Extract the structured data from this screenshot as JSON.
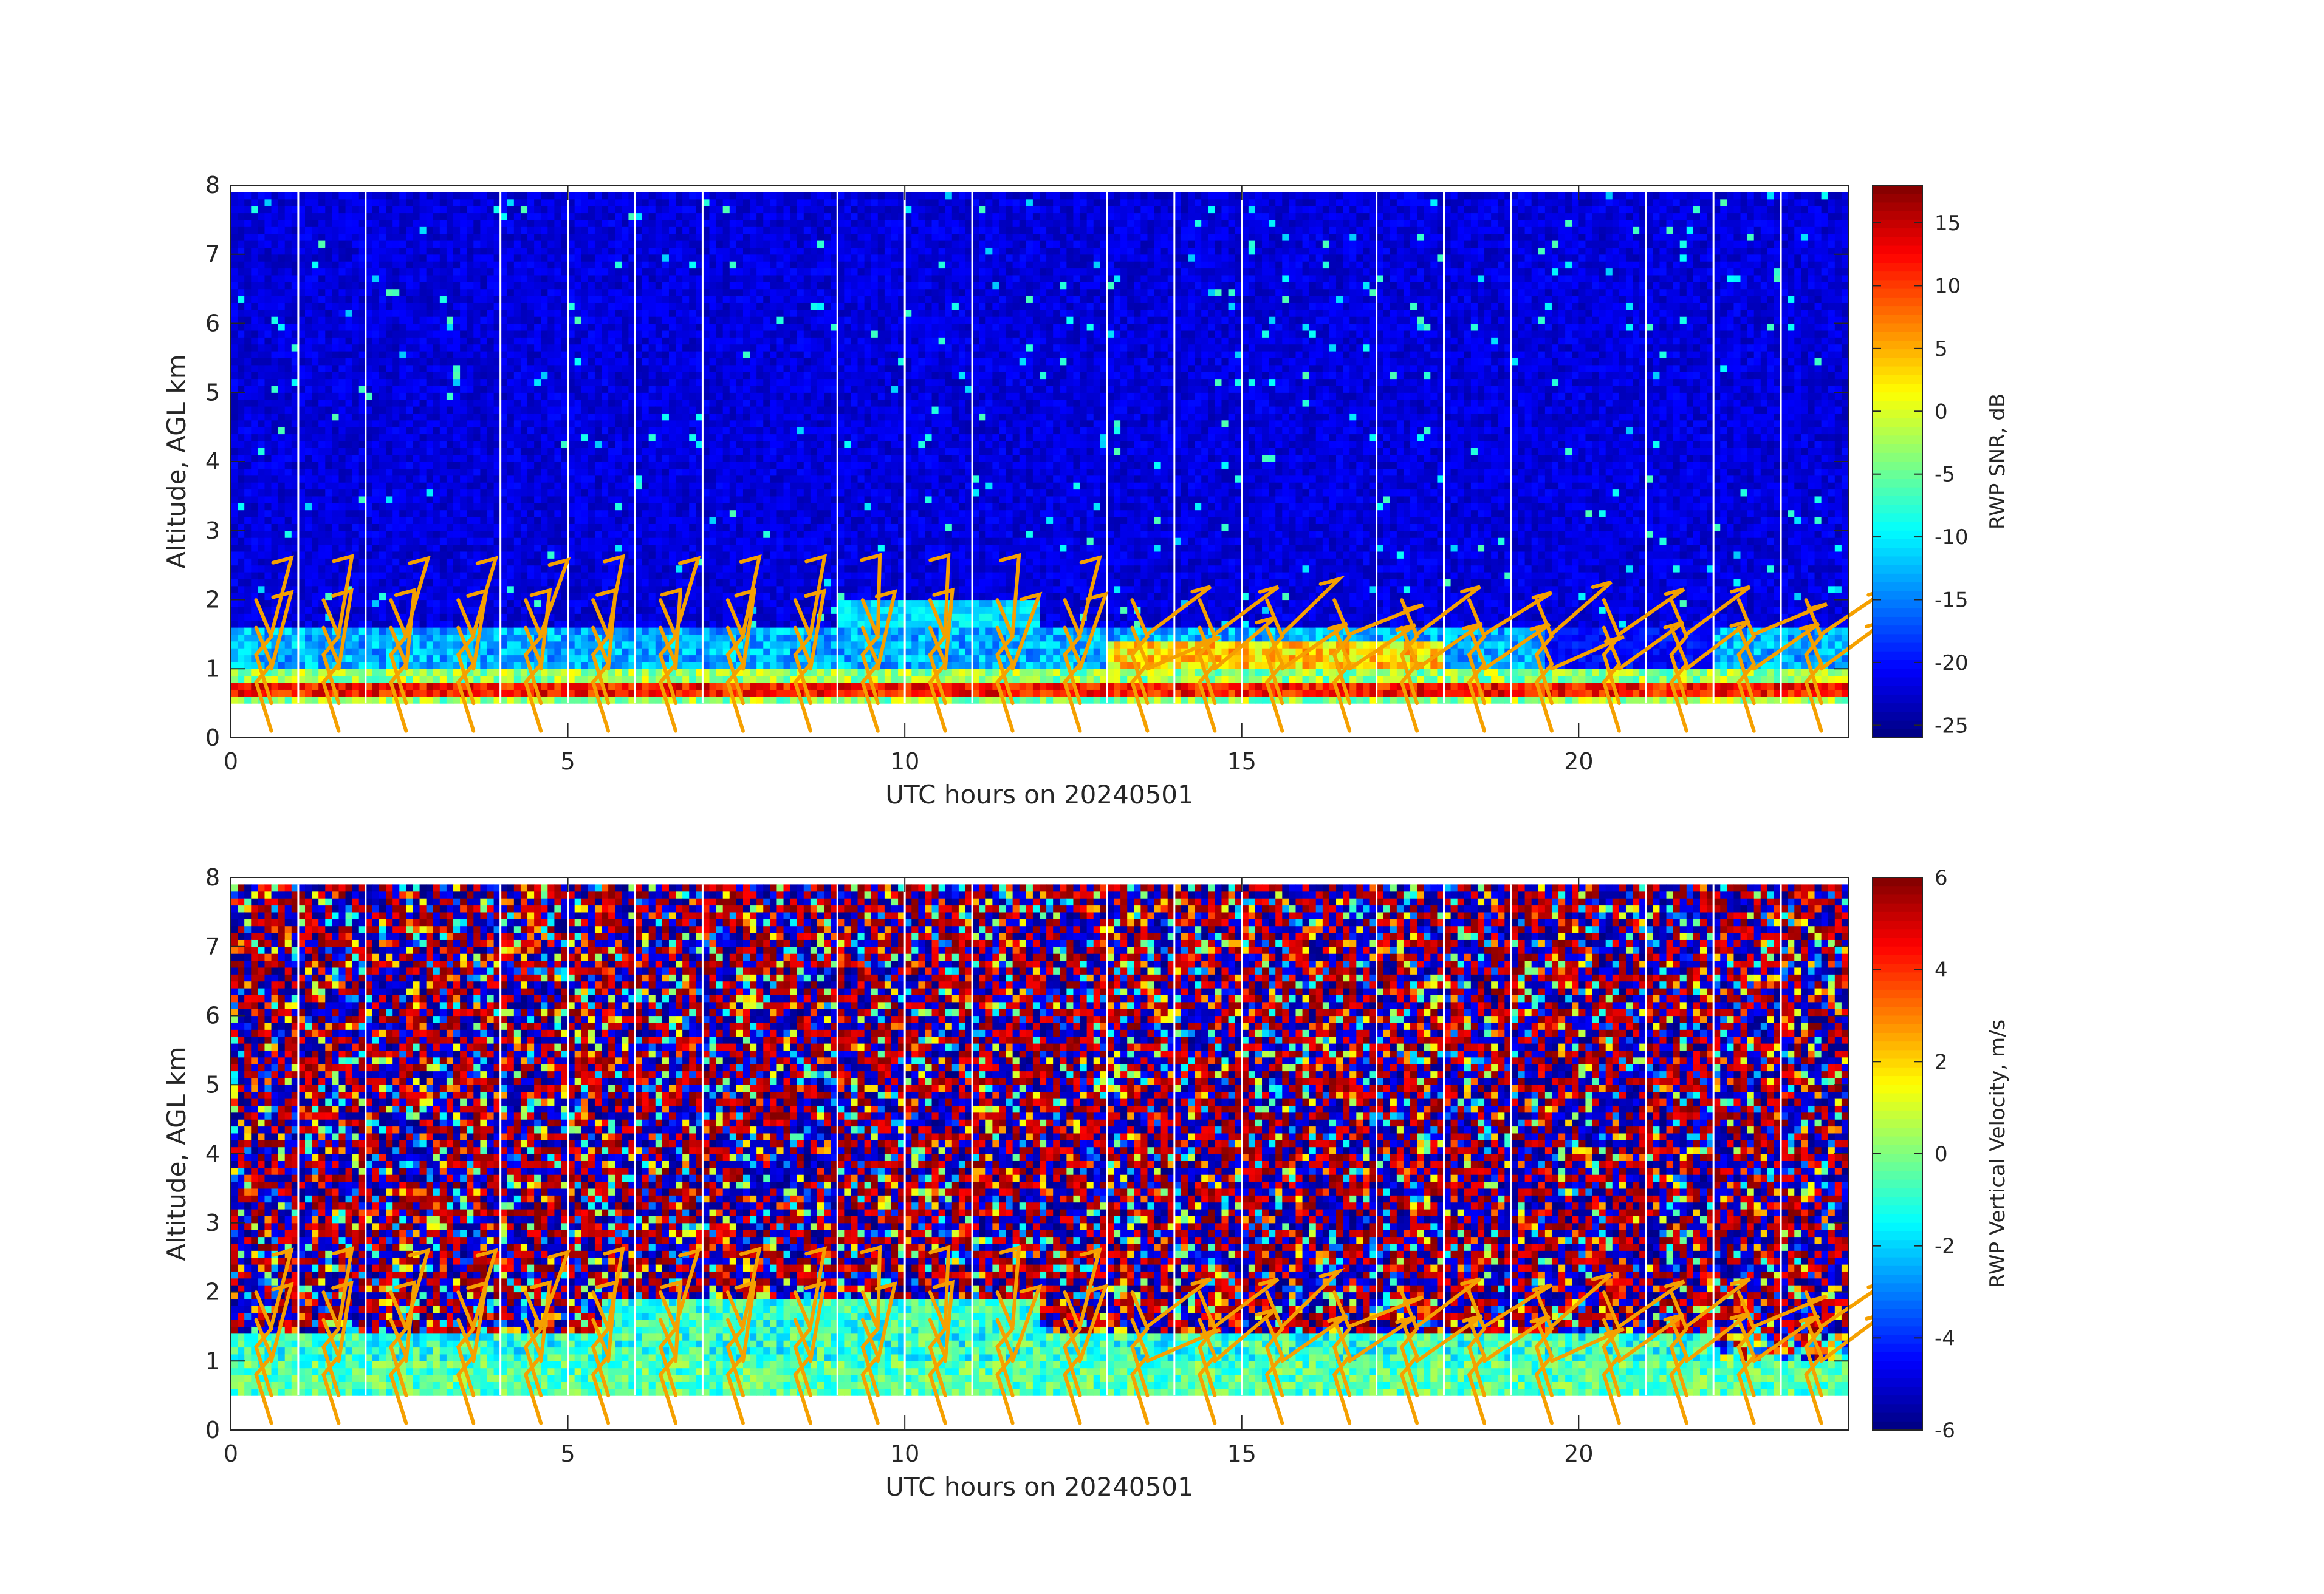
{
  "chart_data": [
    {
      "type": "heatmap",
      "xlabel": "UTC hours on 20240501",
      "ylabel": "Altitude, AGL km",
      "xlim": [
        0,
        24
      ],
      "ylim": [
        0,
        8
      ],
      "xticks": [
        0,
        5,
        10,
        15,
        20
      ],
      "yticks": [
        0,
        1,
        2,
        3,
        4,
        5,
        6,
        7,
        8
      ],
      "colorbar": {
        "label": "RWP SNR, dB",
        "range": [
          -26,
          18
        ],
        "ticks": [
          15,
          10,
          5,
          0,
          -5,
          -10,
          -15,
          -20,
          -25
        ],
        "colormap": "jet"
      },
      "data_altitude_range_km": [
        0.5,
        7.9
      ],
      "gap_hours": [
        1,
        2,
        4,
        5,
        6,
        7,
        9,
        10,
        11,
        13,
        14,
        15,
        17,
        18,
        19,
        21,
        22,
        23
      ],
      "features": {
        "background_snr_db": -22,
        "boundary_layer_top_km": 1.0,
        "strong_band_km": [
          0.6,
          0.85
        ],
        "strong_band_snr_db": 12
      },
      "overlay": "orange wind barbs"
    },
    {
      "type": "heatmap",
      "xlabel": "UTC hours on 20240501",
      "ylabel": "Altitude, AGL km",
      "xlim": [
        0,
        24
      ],
      "ylim": [
        0,
        8
      ],
      "xticks": [
        0,
        5,
        10,
        15,
        20
      ],
      "yticks": [
        0,
        1,
        2,
        3,
        4,
        5,
        6,
        7,
        8
      ],
      "colorbar": {
        "label": "RWP Vertical Velocity, m/s",
        "range": [
          -6,
          6
        ],
        "ticks": [
          6,
          4,
          2,
          0,
          -2,
          -4,
          -6
        ],
        "colormap": "jet"
      },
      "data_altitude_range_km": [
        0.5,
        7.9
      ],
      "gap_hours": [
        1,
        2,
        4,
        5,
        6,
        7,
        9,
        10,
        11,
        13,
        14,
        15,
        17,
        18,
        19,
        21,
        22,
        23
      ],
      "features": {
        "lower_layer_velocity_ms": -0.5,
        "lower_layer_top_km": 1.4,
        "upper_region": "random noise between -6 and 6"
      },
      "overlay": "orange wind barbs"
    }
  ]
}
